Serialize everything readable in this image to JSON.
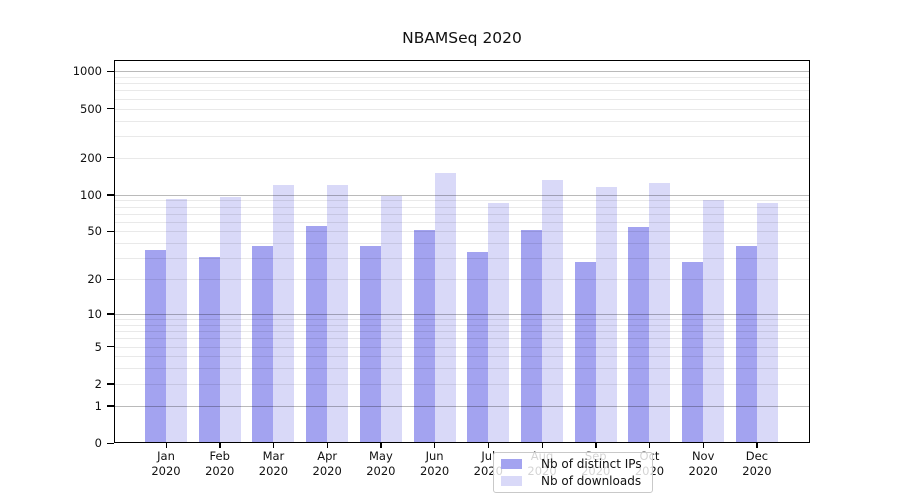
{
  "chart_data": {
    "type": "bar",
    "title": "NBAMSeq 2020",
    "categories": [
      {
        "month": "Jan",
        "year": "2020"
      },
      {
        "month": "Feb",
        "year": "2020"
      },
      {
        "month": "Mar",
        "year": "2020"
      },
      {
        "month": "Apr",
        "year": "2020"
      },
      {
        "month": "May",
        "year": "2020"
      },
      {
        "month": "Jun",
        "year": "2020"
      },
      {
        "month": "Jul",
        "year": "2020"
      },
      {
        "month": "Aug",
        "year": "2020"
      },
      {
        "month": "Sep",
        "year": "2020"
      },
      {
        "month": "Oct",
        "year": "2020"
      },
      {
        "month": "Nov",
        "year": "2020"
      },
      {
        "month": "Dec",
        "year": "2020"
      }
    ],
    "series": [
      {
        "name": "Nb of distinct IPs",
        "color": "#a3a3f0",
        "values": [
          35,
          31,
          38,
          55,
          38,
          51,
          34,
          51,
          28,
          54,
          28,
          38
        ]
      },
      {
        "name": "Nb of downloads",
        "color": "#d9d9f8",
        "values": [
          92,
          95,
          120,
          120,
          98,
          150,
          85,
          131,
          116,
          124,
          91,
          86
        ]
      }
    ],
    "yscale": "symlog",
    "ylim": [
      0,
      1250
    ],
    "yticks": [
      0,
      1,
      2,
      5,
      10,
      20,
      50,
      100,
      200,
      500,
      1000
    ],
    "xlabel": "",
    "ylabel": "",
    "grid": true,
    "legend_position": "lower center inside"
  }
}
